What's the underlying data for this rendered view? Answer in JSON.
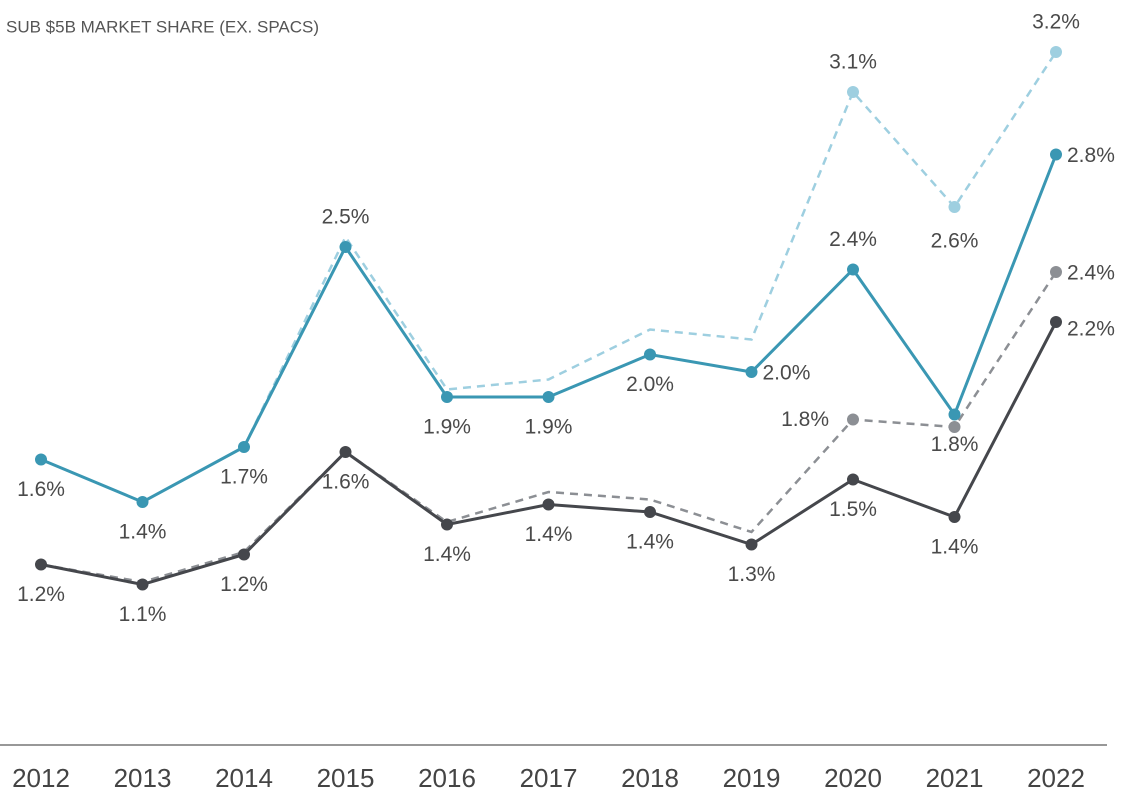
{
  "chart_data": {
    "type": "line",
    "subtitle": "SUB $5B MARKET SHARE (EX. SPACS)",
    "categories": [
      "2012",
      "2013",
      "2014",
      "2015",
      "2016",
      "2017",
      "2018",
      "2019",
      "2020",
      "2021",
      "2022"
    ],
    "ylim": [
      0.6,
      3.4
    ],
    "series": [
      {
        "color": "#9ecfe0",
        "dashed": true,
        "values": [
          1.61,
          1.44,
          1.66,
          2.5,
          1.89,
          1.93,
          2.13,
          2.09,
          3.08,
          2.62,
          3.24
        ],
        "value_labels": [
          null,
          null,
          null,
          null,
          null,
          null,
          null,
          null,
          "3.1%",
          "2.6%",
          "3.2%"
        ]
      },
      {
        "color": "#8c8f94",
        "dashed": true,
        "values": [
          1.19,
          1.12,
          1.24,
          1.64,
          1.36,
          1.48,
          1.45,
          1.32,
          1.77,
          1.74,
          2.36
        ],
        "value_labels": [
          null,
          null,
          null,
          null,
          null,
          null,
          null,
          null,
          "1.8%",
          null,
          "2.4%"
        ]
      },
      {
        "color": "#3a97b3",
        "dashed": false,
        "values": [
          1.61,
          1.44,
          1.66,
          2.46,
          1.86,
          1.86,
          2.03,
          1.96,
          2.37,
          1.79,
          2.83
        ],
        "value_labels": [
          "1.6%",
          "1.4%",
          "1.7%",
          "2.5%",
          "1.9%",
          "1.9%",
          "2.0%",
          "2.0%",
          "2.4%",
          "1.8%",
          "2.8%"
        ]
      },
      {
        "color": "#45474c",
        "dashed": false,
        "values": [
          1.19,
          1.11,
          1.23,
          1.64,
          1.35,
          1.43,
          1.4,
          1.27,
          1.53,
          1.38,
          2.16
        ],
        "value_labels": [
          "1.2%",
          "1.1%",
          "1.2%",
          "1.6%",
          "1.4%",
          "1.4%",
          "1.4%",
          "1.3%",
          "1.5%",
          "1.4%",
          "2.2%"
        ]
      }
    ]
  }
}
